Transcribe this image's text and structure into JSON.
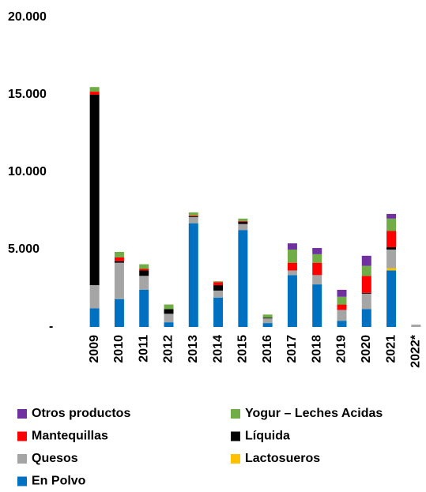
{
  "chart_data": {
    "type": "stacked-bar",
    "categories": [
      "2009",
      "2010",
      "2011",
      "2012",
      "2013",
      "2014",
      "2015",
      "2016",
      "2017",
      "2018",
      "2019",
      "2020",
      "2021",
      "2022*"
    ],
    "series": [
      {
        "name": "Otros productos",
        "color": "#7030a0",
        "values": [
          0,
          0,
          0,
          0,
          0,
          0,
          0,
          0,
          400,
          400,
          450,
          650,
          300,
          0
        ]
      },
      {
        "name": "Yogur – Leches Acidas",
        "color": "#70ad47",
        "values": [
          300,
          350,
          300,
          300,
          200,
          50,
          150,
          200,
          850,
          550,
          500,
          650,
          800,
          0
        ]
      },
      {
        "name": "Mantequillas",
        "color": "#ff0000",
        "values": [
          200,
          250,
          100,
          0,
          50,
          200,
          50,
          0,
          500,
          800,
          350,
          1100,
          1050,
          0
        ]
      },
      {
        "name": "Líquida",
        "color": "#000000",
        "values": [
          12300,
          100,
          350,
          300,
          50,
          350,
          150,
          50,
          0,
          0,
          0,
          50,
          150,
          0
        ]
      },
      {
        "name": "Quesos",
        "color": "#a5a5a5",
        "values": [
          1500,
          2350,
          900,
          550,
          400,
          450,
          400,
          300,
          300,
          600,
          700,
          1000,
          1200,
          150
        ]
      },
      {
        "name": "Lactosueros",
        "color": "#ffc000",
        "values": [
          0,
          0,
          0,
          0,
          0,
          0,
          0,
          0,
          0,
          0,
          0,
          0,
          150,
          0
        ]
      },
      {
        "name": "En Polvo",
        "color": "#0070c0",
        "values": [
          1200,
          1800,
          2400,
          300,
          6700,
          1900,
          6250,
          250,
          3350,
          2750,
          400,
          1150,
          3650,
          0
        ]
      }
    ],
    "ylim": [
      0,
      20000
    ],
    "yticks": [
      {
        "value": 0,
        "label": "-"
      },
      {
        "value": 5000,
        "label": "5.000"
      },
      {
        "value": 10000,
        "label": "10.000"
      },
      {
        "value": 15000,
        "label": "15.000"
      },
      {
        "value": 20000,
        "label": "20.000"
      }
    ],
    "grid": false
  }
}
